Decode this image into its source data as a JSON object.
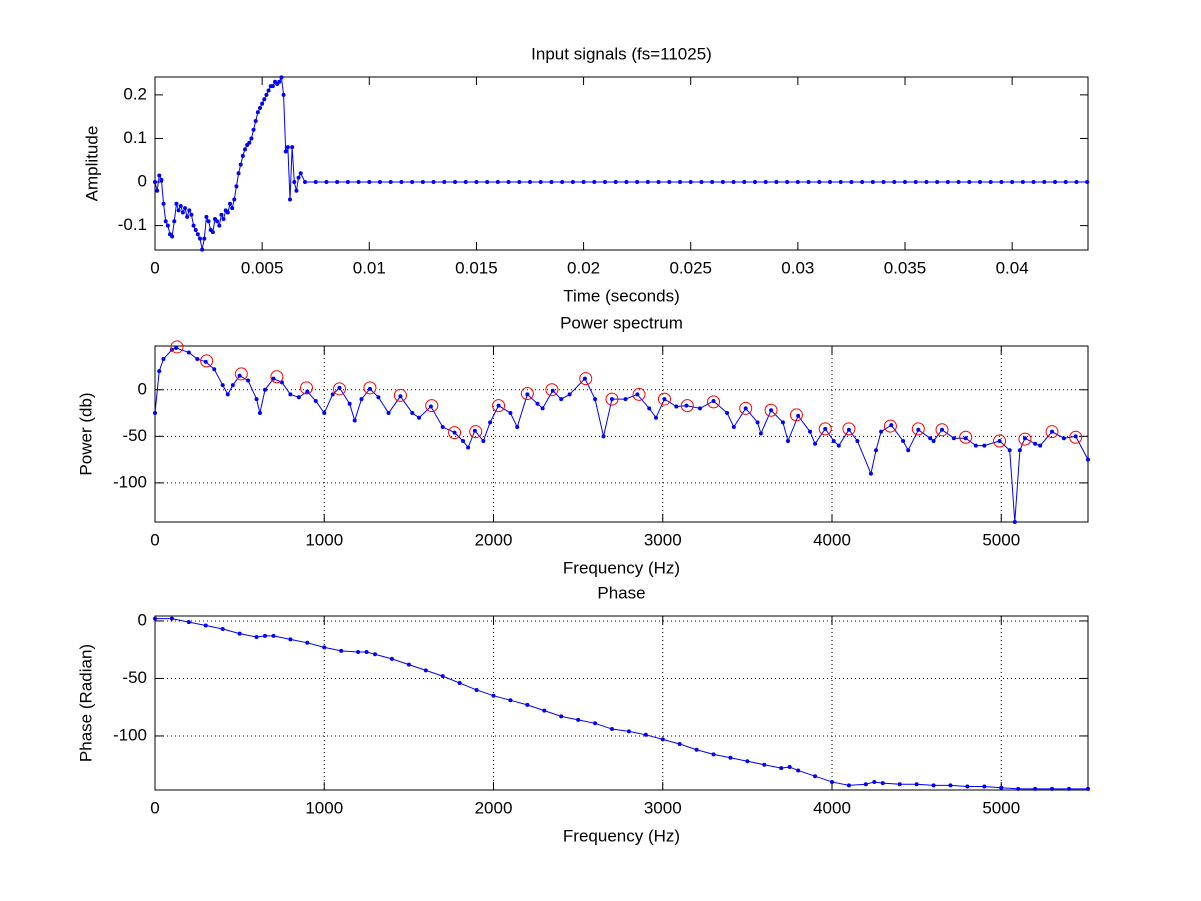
{
  "chart_data": [
    {
      "type": "line",
      "title": "Input signals (fs=11025)",
      "x_label": "Time (seconds)",
      "y_label": "Amplitude",
      "xlim": [
        0,
        0.04354
      ],
      "ylim": [
        -0.156,
        0.241
      ],
      "xticks": [
        0,
        0.005,
        0.01,
        0.015,
        0.02,
        0.025,
        0.03,
        0.035,
        0.04
      ],
      "yticks": [
        -0.1,
        0,
        0.1,
        0.2
      ],
      "grid": false,
      "series": [
        {
          "color": "#0000ff",
          "marker": "dot",
          "line": true,
          "x": [
            0,
            0.0001,
            0.0002,
            0.0003,
            0.0004,
            0.0005,
            0.0006,
            0.0007,
            0.0008,
            0.0009,
            0.001,
            0.0011,
            0.0012,
            0.0013,
            0.0014,
            0.0015,
            0.0016,
            0.0017,
            0.0018,
            0.0019,
            0.002,
            0.0021,
            0.0022,
            0.0023,
            0.0024,
            0.0025,
            0.0026,
            0.0027,
            0.0028,
            0.0029,
            0.003,
            0.0031,
            0.0032,
            0.0033,
            0.0034,
            0.0035,
            0.0036,
            0.0037,
            0.0038,
            0.0039,
            0.004,
            0.0041,
            0.0042,
            0.0043,
            0.0044,
            0.0045,
            0.0046,
            0.0047,
            0.0048,
            0.0049,
            0.005,
            0.0051,
            0.0052,
            0.0053,
            0.0054,
            0.0055,
            0.0056,
            0.0057,
            0.0058,
            0.0059,
            0.006,
            0.0061,
            0.0062,
            0.0063,
            0.0064,
            0.0065,
            0.0066,
            0.0067,
            0.0068,
            0.007,
            0.0075,
            0.008,
            0.0085,
            0.009,
            0.0095,
            0.01,
            0.0105,
            0.011,
            0.0115,
            0.012,
            0.0125,
            0.013,
            0.0135,
            0.014,
            0.0145,
            0.015,
            0.0155,
            0.016,
            0.0165,
            0.017,
            0.0175,
            0.018,
            0.0185,
            0.019,
            0.0195,
            0.02,
            0.0205,
            0.021,
            0.0215,
            0.022,
            0.0225,
            0.023,
            0.0235,
            0.024,
            0.0245,
            0.025,
            0.0255,
            0.026,
            0.0265,
            0.027,
            0.0275,
            0.028,
            0.0285,
            0.029,
            0.0295,
            0.03,
            0.0305,
            0.031,
            0.0315,
            0.032,
            0.0325,
            0.033,
            0.0335,
            0.034,
            0.0345,
            0.035,
            0.0355,
            0.036,
            0.0365,
            0.037,
            0.0375,
            0.038,
            0.0385,
            0.039,
            0.0395,
            0.04,
            0.0405,
            0.041,
            0.0415,
            0.042,
            0.0425,
            0.043,
            0.0435
          ],
          "values": [
            0,
            -0.02,
            0.015,
            0.005,
            -0.05,
            -0.09,
            -0.1,
            -0.12,
            -0.125,
            -0.09,
            -0.05,
            -0.065,
            -0.055,
            -0.07,
            -0.06,
            -0.08,
            -0.065,
            -0.075,
            -0.1,
            -0.11,
            -0.12,
            -0.13,
            -0.155,
            -0.13,
            -0.08,
            -0.09,
            -0.11,
            -0.115,
            -0.085,
            -0.09,
            -0.1,
            -0.075,
            -0.085,
            -0.065,
            -0.07,
            -0.05,
            -0.06,
            -0.04,
            -0.01,
            0.02,
            0.04,
            0.06,
            0.075,
            0.085,
            0.09,
            0.1,
            0.12,
            0.14,
            0.16,
            0.17,
            0.18,
            0.19,
            0.2,
            0.21,
            0.22,
            0.22,
            0.23,
            0.225,
            0.23,
            0.24,
            0.2,
            0.07,
            0.08,
            -0.04,
            0.08,
            0,
            -0.02,
            0.01,
            0.02,
            0,
            0,
            0,
            0,
            0,
            0,
            0,
            0,
            0,
            0,
            0,
            0,
            0,
            0,
            0,
            0,
            0,
            0,
            0,
            0,
            0,
            0,
            0,
            0,
            0,
            0,
            0,
            0,
            0,
            0,
            0,
            0,
            0,
            0,
            0,
            0,
            0,
            0,
            0,
            0,
            0,
            0,
            0,
            0,
            0,
            0,
            0,
            0,
            0,
            0,
            0,
            0,
            0,
            0,
            0,
            0,
            0,
            0,
            0,
            0,
            0,
            0,
            0,
            0,
            0,
            0,
            0,
            0,
            0,
            0,
            0,
            0,
            0,
            0
          ]
        }
      ]
    },
    {
      "type": "line",
      "title": "Power spectrum",
      "x_label": "Frequency (Hz)",
      "y_label": "Power (db)",
      "xlim": [
        0,
        5512.5
      ],
      "ylim": [
        -142,
        47
      ],
      "xticks": [
        0,
        1000,
        2000,
        3000,
        4000,
        5000
      ],
      "yticks": [
        -100,
        -50,
        0
      ],
      "grid": true,
      "series": [
        {
          "color": "#0000ff",
          "marker": "dot",
          "line": true,
          "x": [
            0,
            25,
            50,
            100,
            125,
            200,
            250,
            300,
            350,
            400,
            430,
            460,
            500,
            550,
            600,
            620,
            650,
            700,
            750,
            800,
            850,
            900,
            950,
            1000,
            1050,
            1090,
            1150,
            1180,
            1220,
            1270,
            1320,
            1380,
            1450,
            1520,
            1560,
            1630,
            1700,
            1770,
            1820,
            1850,
            1890,
            1940,
            1980,
            2030,
            2100,
            2140,
            2200,
            2260,
            2290,
            2350,
            2400,
            2450,
            2540,
            2600,
            2650,
            2700,
            2780,
            2850,
            2920,
            2960,
            3010,
            3080,
            3140,
            3220,
            3300,
            3380,
            3420,
            3490,
            3560,
            3580,
            3640,
            3710,
            3740,
            3800,
            3870,
            3900,
            3960,
            4010,
            4040,
            4100,
            4150,
            4230,
            4260,
            4290,
            4350,
            4420,
            4450,
            4510,
            4580,
            4600,
            4650,
            4720,
            4790,
            4850,
            4900,
            4990,
            5050,
            5080,
            5110,
            5140,
            5200,
            5230,
            5300,
            5370,
            5440,
            5512.5
          ],
          "values": [
            -25,
            20,
            33,
            43,
            45,
            40,
            33,
            30,
            22,
            5,
            -5,
            5,
            15,
            10,
            -10,
            -25,
            0,
            12,
            8,
            -5,
            -8,
            -2,
            -12,
            -25,
            -5,
            2,
            -15,
            -33,
            -10,
            1,
            -8,
            -25,
            -7,
            -25,
            -30,
            -18,
            -40,
            -46,
            -55,
            -62,
            -44,
            -55,
            -35,
            -17,
            -25,
            -40,
            -5,
            -15,
            -20,
            -1,
            -10,
            -5,
            12,
            -10,
            -50,
            -10,
            -10,
            -5,
            -20,
            -30,
            -10,
            -18,
            -17,
            -20,
            -12,
            -25,
            -40,
            -20,
            -35,
            -47,
            -22,
            -35,
            -55,
            -28,
            -45,
            -58,
            -42,
            -55,
            -60,
            -43,
            -55,
            -90,
            -65,
            -45,
            -38,
            -55,
            -65,
            -43,
            -52,
            -55,
            -43,
            -52,
            -52,
            -60,
            -60,
            -55,
            -65,
            -142,
            -65,
            -52,
            -58,
            -60,
            -45,
            -52,
            -50,
            -75
          ]
        },
        {
          "color": "#ff0000",
          "marker": "circle",
          "line": false,
          "x": [
            130,
            305,
            510,
            720,
            895,
            1090,
            1270,
            1450,
            1635,
            1770,
            1895,
            2030,
            2200,
            2345,
            2545,
            2700,
            2860,
            3010,
            3145,
            3300,
            3490,
            3640,
            3790,
            3960,
            4100,
            4345,
            4510,
            4650,
            4790,
            4990,
            5140,
            5300,
            5440
          ],
          "values": [
            46,
            31,
            17,
            14,
            2,
            1,
            2,
            -6,
            -17,
            -46,
            -45,
            -17,
            -4,
            0,
            12,
            -10,
            -5,
            -10,
            -17,
            -13,
            -20,
            -22,
            -27,
            -42,
            -42,
            -39,
            -42,
            -43,
            -51,
            -55,
            -53,
            -45,
            -51
          ]
        }
      ]
    },
    {
      "type": "line",
      "title": "Phase",
      "x_label": "Frequency (Hz)",
      "y_label": "Phase (Radian)",
      "xlim": [
        0,
        5512.5
      ],
      "ylim": [
        -147,
        4.3
      ],
      "xticks": [
        0,
        1000,
        2000,
        3000,
        4000,
        5000
      ],
      "yticks": [
        -100,
        -50,
        0
      ],
      "grid": true,
      "series": [
        {
          "color": "#0000ff",
          "marker": "dot",
          "line": true,
          "x": [
            0,
            100,
            200,
            300,
            400,
            500,
            600,
            650,
            700,
            800,
            900,
            1000,
            1100,
            1200,
            1250,
            1300,
            1400,
            1500,
            1600,
            1700,
            1800,
            1900,
            2000,
            2100,
            2200,
            2300,
            2400,
            2500,
            2600,
            2700,
            2800,
            2900,
            3000,
            3100,
            3200,
            3300,
            3400,
            3500,
            3600,
            3700,
            3750,
            3800,
            3900,
            4000,
            4100,
            4200,
            4250,
            4300,
            4400,
            4500,
            4600,
            4700,
            4800,
            4900,
            5000,
            5100,
            5200,
            5300,
            5400,
            5512.5
          ],
          "values": [
            2,
            2,
            -1,
            -4,
            -7,
            -11,
            -14,
            -13,
            -13,
            -16,
            -19,
            -23,
            -26,
            -27,
            -27,
            -29,
            -33,
            -38,
            -43,
            -48,
            -54,
            -60,
            -65,
            -69,
            -73,
            -78,
            -83,
            -86,
            -89,
            -94,
            -96,
            -99,
            -103,
            -107,
            -112,
            -116,
            -119,
            -122,
            -125,
            -128,
            -127,
            -130,
            -135,
            -140,
            -143,
            -142,
            -140,
            -141,
            -142,
            -142,
            -143,
            -143,
            -144,
            -144,
            -145,
            -146,
            -146,
            -146,
            -146,
            -146
          ]
        }
      ]
    }
  ]
}
